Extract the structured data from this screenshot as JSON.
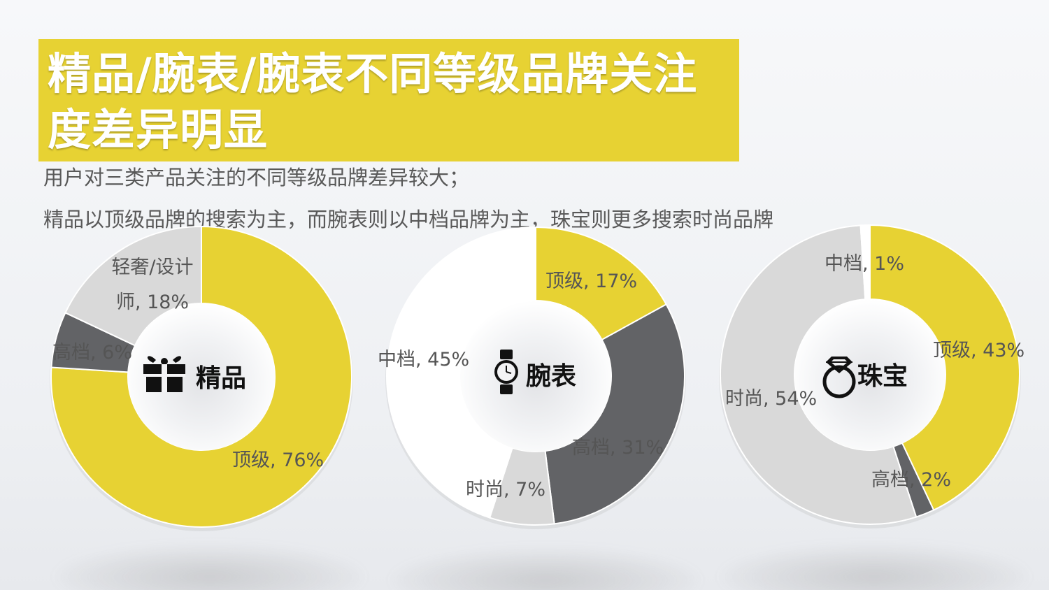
{
  "title": "精品/腕表/腕表不同等级品牌关注度差异明显",
  "subtitles": [
    "用户对三类产品关注的不同等级品牌差异较大；",
    "精品以顶级品牌的搜索为主，而腕表则以中档品牌为主，珠宝则更多搜索时尚品牌"
  ],
  "colors": {
    "accent": "#e7d233",
    "dark_gray": "#626366",
    "light_gray": "#d9d9d9",
    "white": "#ffffff"
  },
  "chart_data": [
    {
      "type": "pie",
      "donut": true,
      "center_label": "精品",
      "center_icon": "gift-icon",
      "categories": [
        "顶级",
        "高档",
        "轻奢/设计师"
      ],
      "values": [
        76,
        6,
        18
      ],
      "unit": "%",
      "labels": [
        "顶级, 76%",
        "高档, 6%",
        "轻奢/设计\n师, 18%"
      ],
      "colors": [
        "#e7d233",
        "#626366",
        "#d9d9d9"
      ]
    },
    {
      "type": "pie",
      "donut": true,
      "center_label": "腕表",
      "center_icon": "watch-icon",
      "categories": [
        "顶级",
        "高档",
        "时尚",
        "中档"
      ],
      "values": [
        17,
        31,
        7,
        45
      ],
      "unit": "%",
      "labels": [
        "顶级, 17%",
        "高档, 31%",
        "时尚, 7%",
        "中档, 45%"
      ],
      "colors": [
        "#e7d233",
        "#626366",
        "#d9d9d9",
        "#ffffff"
      ]
    },
    {
      "type": "pie",
      "donut": true,
      "center_label": "珠宝",
      "center_icon": "ring-icon",
      "categories": [
        "顶级",
        "高档",
        "时尚",
        "中档"
      ],
      "values": [
        43,
        2,
        54,
        1
      ],
      "unit": "%",
      "labels": [
        "顶级, 43%",
        "高档, 2%",
        "时尚, 54%",
        "中档, 1%"
      ],
      "colors": [
        "#e7d233",
        "#626366",
        "#d9d9d9",
        "#ffffff"
      ]
    }
  ]
}
